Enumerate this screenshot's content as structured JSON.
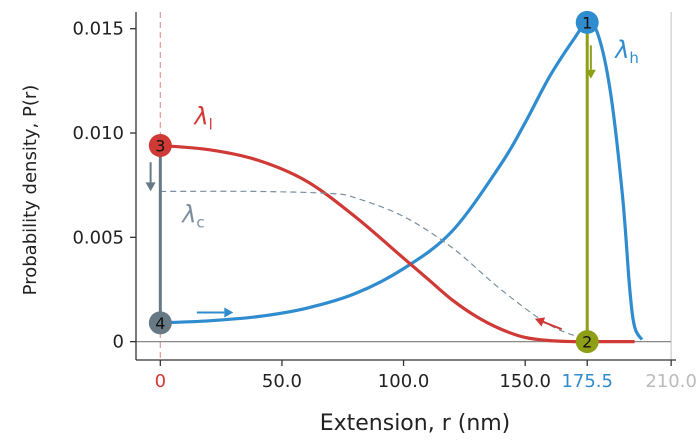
{
  "chart_data": {
    "type": "line",
    "xlabel": "Extension, r (nm)",
    "ylabel": "Probability density, P(r)",
    "xlim": [
      -10,
      212
    ],
    "ylim": [
      -0.0004,
      0.0158
    ],
    "xticks": [
      {
        "value": 0,
        "label": "0",
        "color": "#d03a36"
      },
      {
        "value": 50,
        "label": "50.0",
        "color": "#222222"
      },
      {
        "value": 100,
        "label": "100.0",
        "color": "#222222"
      },
      {
        "value": 150,
        "label": "150.0",
        "color": "#222222"
      },
      {
        "value": 175.5,
        "label": "175.5",
        "color": "#2f8ccf"
      },
      {
        "value": 210,
        "label": "210.0",
        "color": "#bbbbbb"
      }
    ],
    "yticks": [
      {
        "value": 0,
        "label": "0"
      },
      {
        "value": 0.005,
        "label": "0.005"
      },
      {
        "value": 0.01,
        "label": "0.010"
      },
      {
        "value": 0.015,
        "label": "0.015"
      }
    ],
    "grid": false,
    "reference_lines": [
      {
        "axis": "x",
        "value": 0,
        "style": "dashed",
        "color": "#e8a09c"
      },
      {
        "axis": "x",
        "value": 210,
        "style": "solid",
        "color": "#d0d0d0"
      },
      {
        "axis": "y",
        "value": 0,
        "style": "solid",
        "color": "#888888"
      }
    ],
    "series": [
      {
        "name": "λh",
        "label_sub": "h",
        "color": "#2f8ccf",
        "style": "solid",
        "x": [
          0,
          20,
          40,
          60,
          80,
          100,
          120,
          140,
          150,
          160,
          170,
          175.5,
          180,
          185,
          190,
          193,
          195,
          198
        ],
        "y": [
          0.0009,
          0.001,
          0.0012,
          0.0016,
          0.0023,
          0.0035,
          0.0053,
          0.0085,
          0.0105,
          0.0127,
          0.0145,
          0.0153,
          0.0147,
          0.012,
          0.007,
          0.0025,
          0.0007,
          0.0001
        ]
      },
      {
        "name": "λl",
        "label_sub": "l",
        "color": "#d03a36",
        "style": "solid",
        "x": [
          0,
          20,
          40,
          60,
          80,
          100,
          110,
          120,
          130,
          140,
          150,
          160,
          170,
          175.5,
          180,
          195
        ],
        "y": [
          0.0094,
          0.0092,
          0.0087,
          0.0077,
          0.006,
          0.004,
          0.003,
          0.002,
          0.0012,
          0.0006,
          0.0002,
          5e-05,
          0.0,
          0.0,
          0.0,
          0.0
        ]
      },
      {
        "name": "λc",
        "label_sub": "c",
        "color": "#7a8fa0",
        "style": "dashed",
        "x": [
          0,
          40,
          70,
          80,
          100,
          120,
          140,
          160,
          175.5
        ],
        "y": [
          0.0072,
          0.0072,
          0.0071,
          0.0069,
          0.006,
          0.0045,
          0.0025,
          0.0008,
          0.0001
        ]
      }
    ],
    "transitions": [
      {
        "label": "vertical-1-2",
        "x": 175.5,
        "y_from": 0.0153,
        "y_to": 0.0,
        "color": "#8e9f16"
      },
      {
        "label": "vertical-3-4",
        "x": 0,
        "y_from": 0.0094,
        "y_to": 0.0009,
        "color": "#667985"
      }
    ],
    "points": [
      {
        "label": "1",
        "x": 175.5,
        "y": 0.0153,
        "color": "#2f8ccf"
      },
      {
        "label": "2",
        "x": 175.5,
        "y": 0.0,
        "color": "#8e9f16"
      },
      {
        "label": "3",
        "x": 0,
        "y": 0.0094,
        "color": "#d03a36"
      },
      {
        "label": "4",
        "x": 0,
        "y": 0.0009,
        "color": "#667985"
      }
    ],
    "arrows": [
      {
        "name": "arrow-down-1-2",
        "from": [
          177,
          0.0142
        ],
        "to": [
          177,
          0.0126
        ],
        "color": "#8e9f16"
      },
      {
        "name": "arrow-down-3-4",
        "from": [
          -4,
          0.0086
        ],
        "to": [
          -4,
          0.0072
        ],
        "color": "#667985"
      },
      {
        "name": "arrow-along-red",
        "from": [
          165,
          0.0006
        ],
        "to": [
          154,
          0.0011
        ],
        "color": "#d03a36"
      },
      {
        "name": "arrow-along-blue",
        "from": [
          15,
          0.0014
        ],
        "to": [
          30,
          0.0014
        ],
        "color": "#2f8ccf"
      }
    ],
    "series_label_positions": {
      "λh": [
        187,
        0.0136
      ],
      "λl": [
        14,
        0.0104
      ],
      "λc": [
        9,
        0.0057
      ]
    }
  }
}
